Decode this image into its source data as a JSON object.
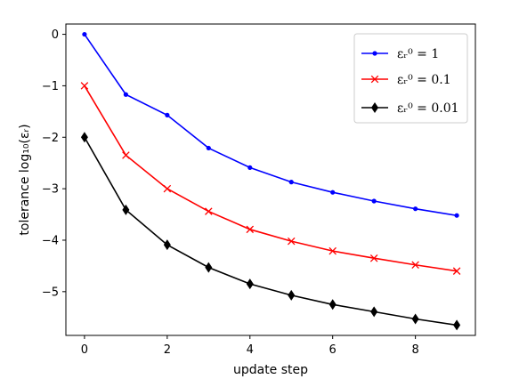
{
  "chart_data": {
    "type": "line",
    "title": "",
    "xlabel": "update step",
    "ylabel": "tolerance log₁₀(εᵣ)",
    "xlim": [
      -0.45,
      9.45
    ],
    "ylim": [
      -5.85,
      0.2
    ],
    "xticks": [
      0,
      2,
      4,
      6,
      8
    ],
    "yticks": [
      0,
      -1,
      -2,
      -3,
      -4,
      -5
    ],
    "ytick_labels": [
      "0",
      "−1",
      "−2",
      "−3",
      "−4",
      "−5"
    ],
    "grid": false,
    "legend": "top-right",
    "x": [
      0,
      1,
      2,
      3,
      4,
      5,
      6,
      7,
      8,
      9
    ],
    "series": [
      {
        "name": "εᵣ⁰ = 1",
        "color": "#0000ff",
        "marker": "dot",
        "values": [
          0.0,
          -1.17,
          -1.57,
          -2.21,
          -2.59,
          -2.87,
          -3.07,
          -3.24,
          -3.39,
          -3.52
        ]
      },
      {
        "name": "εᵣ⁰ = 0.1",
        "color": "#ff0000",
        "marker": "x",
        "values": [
          -1.0,
          -2.35,
          -3.0,
          -3.44,
          -3.79,
          -4.02,
          -4.21,
          -4.35,
          -4.48,
          -4.6
        ]
      },
      {
        "name": "εᵣ⁰ = 0.01",
        "color": "#000000",
        "marker": "diamond",
        "values": [
          -2.0,
          -3.41,
          -4.09,
          -4.53,
          -4.85,
          -5.07,
          -5.25,
          -5.39,
          -5.53,
          -5.65
        ]
      }
    ]
  }
}
